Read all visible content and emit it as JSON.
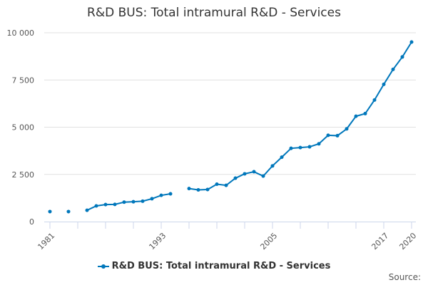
{
  "chart_data": {
    "type": "line",
    "title": "R&D BUS: Total intramural R&D - Services",
    "series": [
      {
        "name": "R&D BUS: Total intramural R&D - Services",
        "color": "#0077bb",
        "x": [
          1981,
          1982,
          1983,
          1984,
          1985,
          1986,
          1987,
          1988,
          1989,
          1990,
          1991,
          1992,
          1993,
          1994,
          1995,
          1996,
          1997,
          1998,
          1999,
          2000,
          2001,
          2002,
          2003,
          2004,
          2005,
          2006,
          2007,
          2008,
          2009,
          2010,
          2011,
          2012,
          2013,
          2014,
          2015,
          2016,
          2017,
          2018,
          2019,
          2020
        ],
        "values": [
          530,
          null,
          530,
          null,
          600,
          830,
          900,
          910,
          1030,
          1050,
          1080,
          1210,
          1390,
          1470,
          null,
          1750,
          1680,
          1700,
          1980,
          1920,
          2300,
          2530,
          2640,
          2410,
          2950,
          3410,
          3880,
          3920,
          3960,
          4120,
          4570,
          4550,
          4910,
          5580,
          5720,
          6440,
          7270,
          8060,
          8720,
          9510
        ]
      }
    ],
    "ylim": [
      0,
      10000
    ],
    "xlim": [
      1981,
      2020
    ],
    "y_ticks": [
      "0",
      "2 500",
      "5 000",
      "7 500",
      "10 000"
    ],
    "x_tick_labels": [
      "1981",
      "1993",
      "2005",
      "2017",
      "2020"
    ],
    "grid": "horizontal",
    "legend": "bottom"
  },
  "source_label": "Source:"
}
